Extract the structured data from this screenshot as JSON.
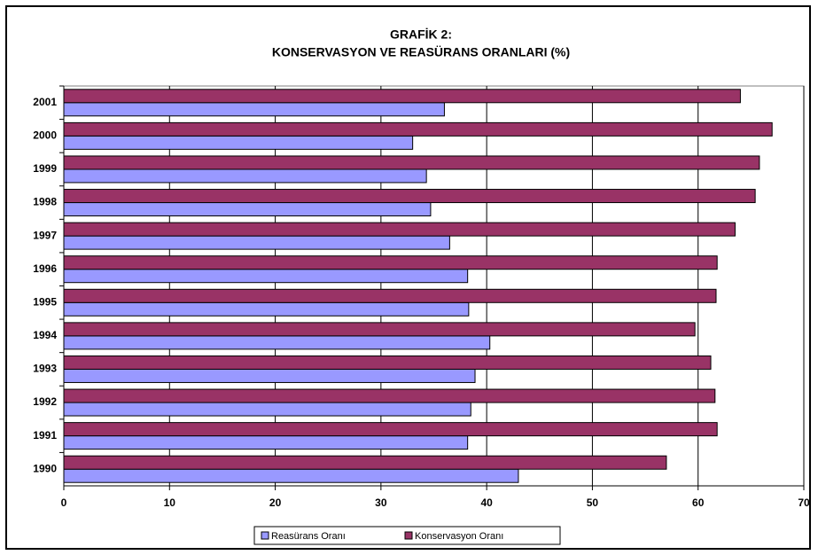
{
  "chart_data": {
    "type": "hbar",
    "title_lines": [
      "GRAFİK 2:",
      "KONSERVASYON VE REASÜRANS ORANLARI (%)"
    ],
    "categories": [
      "1990",
      "1991",
      "1992",
      "1993",
      "1994",
      "1995",
      "1996",
      "1997",
      "1998",
      "1999",
      "2000",
      "2001"
    ],
    "series": [
      {
        "name": "Reasürans Oranı",
        "color": "#9999ff",
        "values": [
          43.0,
          38.2,
          38.5,
          38.9,
          40.3,
          38.3,
          38.2,
          36.5,
          34.7,
          34.3,
          33.0,
          36.0
        ]
      },
      {
        "name": "Konservasyon Oranı",
        "color": "#993366",
        "values": [
          57.0,
          61.8,
          61.6,
          61.2,
          59.7,
          61.7,
          61.8,
          63.5,
          65.4,
          65.8,
          67.0,
          64.0
        ]
      }
    ],
    "xlim": [
      0,
      70
    ],
    "xticks": [
      0,
      10,
      20,
      30,
      40,
      50,
      60,
      70
    ],
    "grid": true,
    "legend": "bottom"
  }
}
